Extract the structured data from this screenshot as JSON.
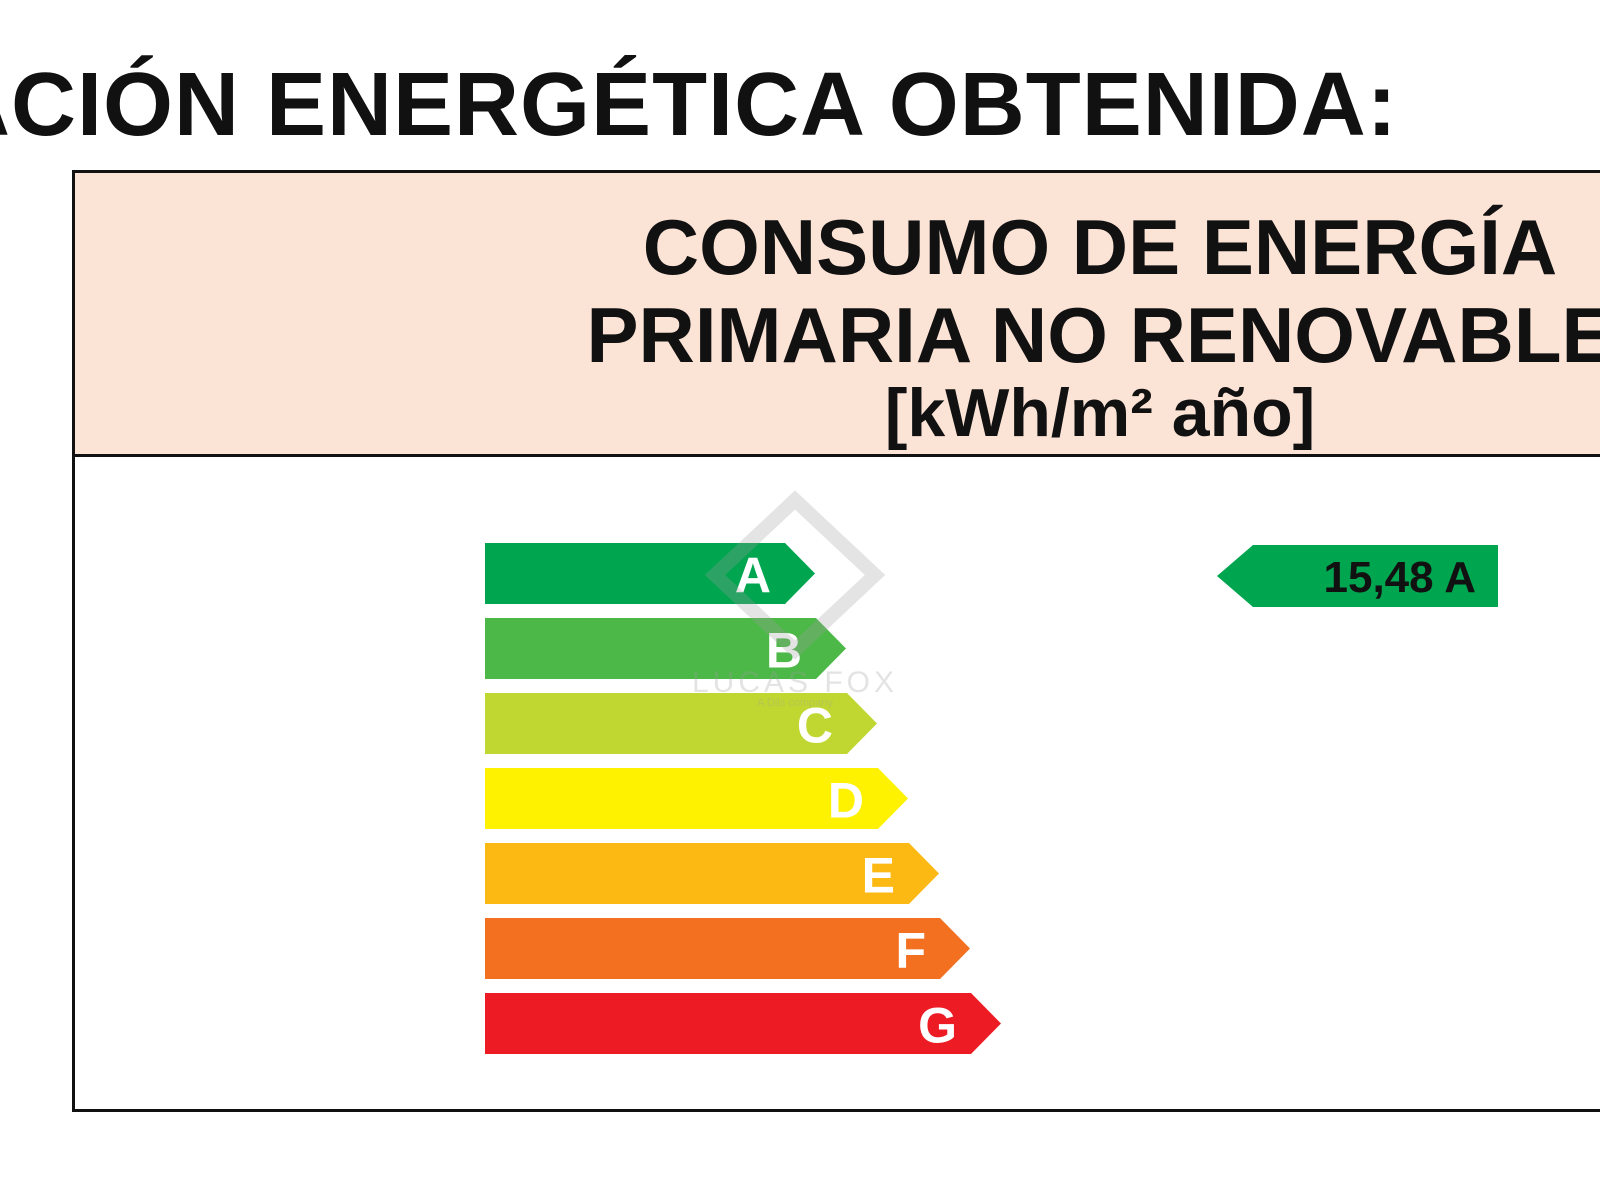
{
  "heading": "ACIÓN ENERGÉTICA OBTENIDA:",
  "panel": {
    "title_line1": "CONSUMO DE ENERGÍA",
    "title_line2": "PRIMARIA NO RENOVABLE",
    "unit": "[kWh/m² año]"
  },
  "scale": [
    {
      "letter": "A",
      "color": "#00a550"
    },
    {
      "letter": "B",
      "color": "#4cb848"
    },
    {
      "letter": "C",
      "color": "#bfd730"
    },
    {
      "letter": "D",
      "color": "#fff200"
    },
    {
      "letter": "E",
      "color": "#fdb913"
    },
    {
      "letter": "F",
      "color": "#f37021"
    },
    {
      "letter": "G",
      "color": "#ed1c24"
    }
  ],
  "rating": {
    "label": "15,48 A",
    "value": 15.48,
    "class": "A",
    "color": "#00a550"
  },
  "watermark": {
    "brand": "LUCAS FOX",
    "tagline": "A Dils company"
  }
}
